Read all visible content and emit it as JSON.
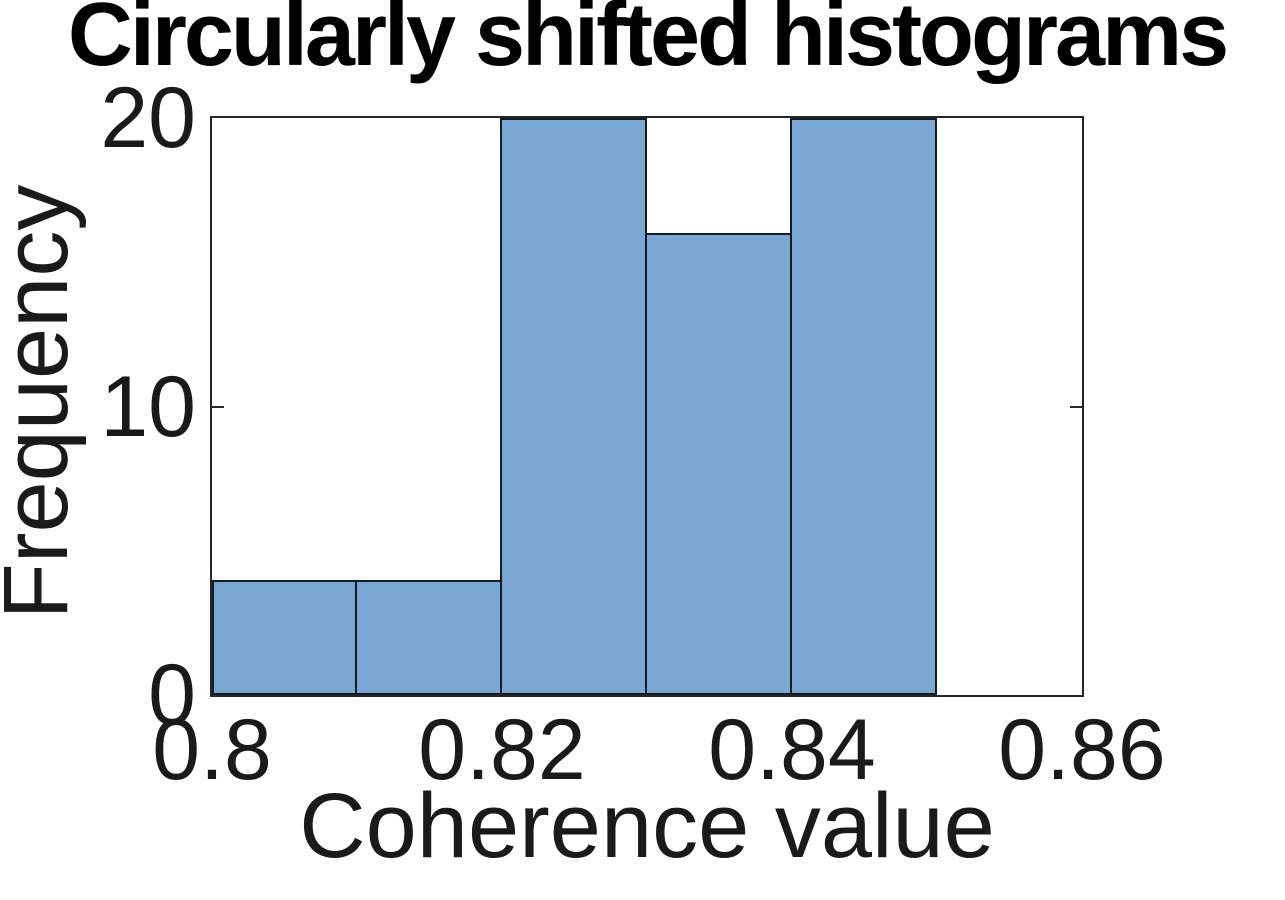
{
  "chart_data": {
    "type": "bar",
    "subtype": "histogram",
    "title": "Circularly shifted histograms",
    "xlabel": "Coherence value",
    "ylabel": "Frequency",
    "bin_edges": [
      0.8,
      0.81,
      0.82,
      0.83,
      0.84,
      0.85,
      0.86
    ],
    "counts": [
      4,
      4,
      20,
      16,
      20,
      0
    ],
    "xlim": [
      0.8,
      0.86
    ],
    "ylim": [
      0,
      20
    ],
    "xticks": [
      {
        "value": 0.8,
        "label": "0.8"
      },
      {
        "value": 0.82,
        "label": "0.82"
      },
      {
        "value": 0.84,
        "label": "0.84"
      },
      {
        "value": 0.86,
        "label": "0.86"
      }
    ],
    "yticks": [
      {
        "value": 0,
        "label": "0"
      },
      {
        "value": 10,
        "label": "10"
      },
      {
        "value": 20,
        "label": "20"
      }
    ],
    "grid": false,
    "legend": null,
    "colors": {
      "bar_fill": "#7AA7D3",
      "bar_edge": "#161C22",
      "axis": "#262626",
      "text": "#1A1A1A",
      "title": "#000000"
    }
  }
}
